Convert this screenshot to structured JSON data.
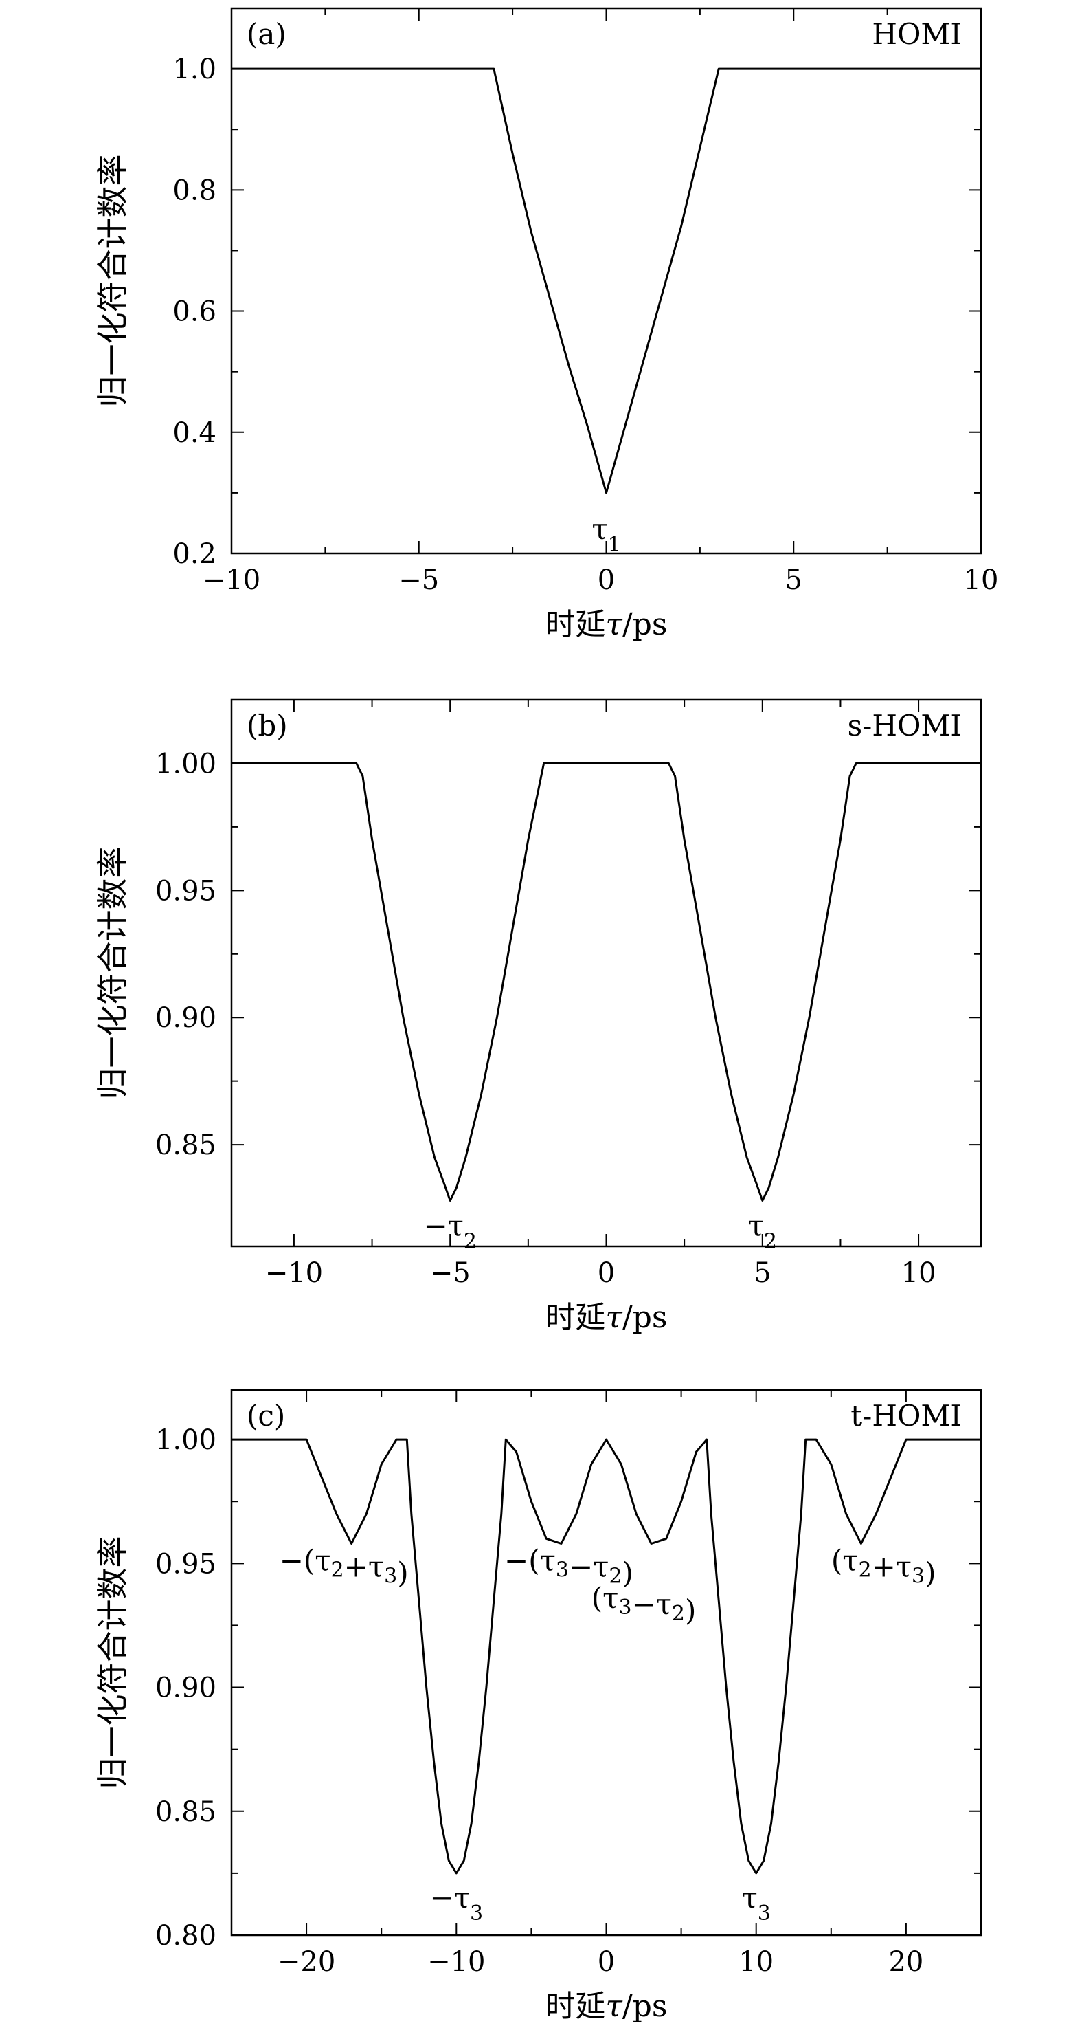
{
  "chart_data": [
    {
      "type": "line",
      "panel_tag": "(a)",
      "legend": "HOMI",
      "xlabel_prefix": "时延",
      "xlabel_symbol": "τ",
      "xlabel_unit": "/ps",
      "ylabel": "归一化符合计数率",
      "xlim": [
        -10,
        10
      ],
      "ylim": [
        0.2,
        1.1
      ],
      "xticks": [
        -10,
        -5,
        0,
        5,
        10
      ],
      "xtick_labels": [
        "−10",
        "−5",
        "0",
        "5",
        "10"
      ],
      "yticks": [
        0.2,
        0.4,
        0.6,
        0.8,
        1.0
      ],
      "ytick_labels": [
        "0.2",
        "0.4",
        "0.6",
        "0.8",
        "1.0"
      ],
      "series": [
        {
          "x": [
            -10,
            -3,
            -2.5,
            -2,
            -1.5,
            -1,
            -0.5,
            0,
            0.5,
            1,
            1.5,
            2,
            2.5,
            3,
            10
          ],
          "y": [
            1.0,
            1.0,
            0.86,
            0.73,
            0.62,
            0.51,
            0.41,
            0.3,
            0.41,
            0.52,
            0.63,
            0.74,
            0.87,
            1.0,
            1.0
          ]
        }
      ],
      "annotations": [
        {
          "x": 0,
          "y": 0.24,
          "base": "τ",
          "sub": "1"
        }
      ]
    },
    {
      "type": "line",
      "panel_tag": "(b)",
      "legend": "s-HOMI",
      "xlabel_prefix": "时延",
      "xlabel_symbol": "τ",
      "xlabel_unit": "/ps",
      "ylabel": "归一化符合计数率",
      "xlim": [
        -12,
        12
      ],
      "ylim": [
        0.81,
        1.025
      ],
      "xticks": [
        -10,
        -5,
        0,
        5,
        10
      ],
      "xtick_labels": [
        "−10",
        "−5",
        "0",
        "5",
        "10"
      ],
      "yticks": [
        0.85,
        0.9,
        0.95,
        1.0
      ],
      "ytick_labels": [
        "0.85",
        "0.90",
        "0.95",
        "1.00"
      ],
      "series": [
        {
          "x": [
            -12,
            -8,
            -7.8,
            -7.5,
            -7,
            -6.5,
            -6,
            -5.5,
            -5.2,
            -5,
            -4.8,
            -4.5,
            -4,
            -3.5,
            -3,
            -2.5,
            -2,
            2,
            2.2,
            2.5,
            3,
            3.5,
            4,
            4.5,
            4.8,
            5,
            5.2,
            5.5,
            6,
            6.5,
            7,
            7.5,
            7.8,
            8,
            12
          ],
          "y": [
            1.0,
            1.0,
            0.995,
            0.97,
            0.935,
            0.9,
            0.87,
            0.845,
            0.835,
            0.828,
            0.833,
            0.845,
            0.87,
            0.9,
            0.935,
            0.97,
            1.0,
            1.0,
            0.995,
            0.97,
            0.935,
            0.9,
            0.87,
            0.845,
            0.835,
            0.828,
            0.833,
            0.845,
            0.87,
            0.9,
            0.935,
            0.97,
            0.995,
            1.0,
            1.0
          ]
        }
      ],
      "annotations": [
        {
          "x": -5,
          "y": 0.818,
          "base": "−τ",
          "sub": "2"
        },
        {
          "x": 5,
          "y": 0.818,
          "base": "τ",
          "sub": "2"
        }
      ]
    },
    {
      "type": "line",
      "panel_tag": "(c)",
      "legend": "t-HOMI",
      "xlabel_prefix": "时延",
      "xlabel_symbol": "τ",
      "xlabel_unit": "/ps",
      "ylabel": "归一化符合计数率",
      "xlim": [
        -25,
        25
      ],
      "ylim": [
        0.8,
        1.02
      ],
      "xticks": [
        -20,
        -10,
        0,
        10,
        20
      ],
      "xtick_labels": [
        "−20",
        "−10",
        "0",
        "10",
        "20"
      ],
      "yticks": [
        0.8,
        0.85,
        0.9,
        0.95,
        1.0
      ],
      "ytick_labels": [
        "0.80",
        "0.85",
        "0.90",
        "0.95",
        "1.00"
      ],
      "series": [
        {
          "x": [
            -25,
            -20,
            -19,
            -18,
            -17,
            -16,
            -15,
            -14,
            -13.3,
            -13,
            -12.5,
            -12,
            -11.5,
            -11,
            -10.5,
            -10,
            -9.5,
            -9,
            -8.5,
            -8,
            -7.5,
            -7,
            -6.7,
            -6,
            -5,
            -4,
            -3,
            -2,
            -1,
            0,
            1,
            2,
            3,
            4,
            5,
            6,
            6.7,
            7,
            7.5,
            8,
            8.5,
            9,
            9.5,
            10,
            10.5,
            11,
            11.5,
            12,
            12.5,
            13,
            13.3,
            14,
            15,
            16,
            17,
            18,
            19,
            20,
            25
          ],
          "y": [
            1.0,
            1.0,
            0.985,
            0.97,
            0.958,
            0.97,
            0.99,
            1.0,
            1.0,
            0.97,
            0.935,
            0.9,
            0.87,
            0.845,
            0.83,
            0.825,
            0.83,
            0.845,
            0.87,
            0.9,
            0.935,
            0.97,
            1.0,
            0.995,
            0.975,
            0.96,
            0.958,
            0.97,
            0.99,
            1.0,
            0.99,
            0.97,
            0.958,
            0.96,
            0.975,
            0.995,
            1.0,
            0.97,
            0.935,
            0.9,
            0.87,
            0.845,
            0.83,
            0.825,
            0.83,
            0.845,
            0.87,
            0.9,
            0.935,
            0.97,
            1.0,
            1.0,
            0.99,
            0.97,
            0.958,
            0.97,
            0.985,
            1.0,
            1.0
          ]
        }
      ],
      "annotations": [
        {
          "x": -17.5,
          "y": 0.951,
          "text": "−(τ2+τ3)"
        },
        {
          "x": -2.5,
          "y": 0.951,
          "text": "−(τ3−τ2)"
        },
        {
          "x": 2.5,
          "y": 0.936,
          "text": "(τ3−τ2)"
        },
        {
          "x": 18.5,
          "y": 0.951,
          "text": "(τ2+τ3)"
        },
        {
          "x": -10,
          "y": 0.815,
          "base": "−τ",
          "sub": "3"
        },
        {
          "x": 10,
          "y": 0.815,
          "base": "τ",
          "sub": "3"
        }
      ]
    }
  ]
}
